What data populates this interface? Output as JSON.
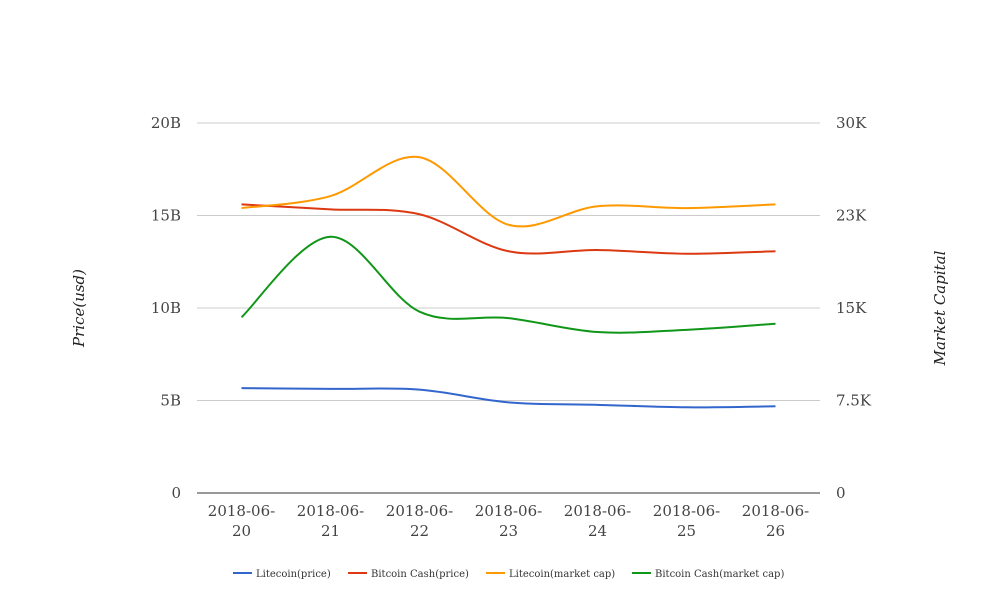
{
  "chart_data": {
    "type": "line",
    "x": [
      "2018-06-20",
      "2018-06-21",
      "2018-06-22",
      "2018-06-23",
      "2018-06-24",
      "2018-06-25",
      "2018-06-26"
    ],
    "x_tick_labels": [
      [
        "2018-06-",
        "20"
      ],
      [
        "2018-06-",
        "21"
      ],
      [
        "2018-06-",
        "22"
      ],
      [
        "2018-06-",
        "23"
      ],
      [
        "2018-06-",
        "24"
      ],
      [
        "2018-06-",
        "25"
      ],
      [
        "2018-06-",
        "26"
      ]
    ],
    "ylabel": "Price(usd)",
    "y2label": "Market Capital",
    "ylim": [
      0,
      20000000000
    ],
    "y2lim": [
      0,
      30000
    ],
    "y_ticks": [
      {
        "value": 0,
        "label": "0"
      },
      {
        "value": 5000000000,
        "label": "5B"
      },
      {
        "value": 10000000000,
        "label": "10B"
      },
      {
        "value": 15000000000,
        "label": "15B"
      },
      {
        "value": 20000000000,
        "label": "20B"
      }
    ],
    "y2_ticks": [
      {
        "value": 0,
        "label": "0"
      },
      {
        "value": 7500,
        "label": "7.5K"
      },
      {
        "value": 15000,
        "label": "15K"
      },
      {
        "value": 22500,
        "label": "23K"
      },
      {
        "value": 30000,
        "label": "30K"
      }
    ],
    "grid": true,
    "legend_position": "bottom",
    "series": [
      {
        "name": "Litecoin(price)",
        "axis": "right",
        "color": "#3366cc",
        "values": [
          8500,
          8440,
          8380,
          7350,
          7150,
          6950,
          7030
        ]
      },
      {
        "name": "Bitcoin Cash(price)",
        "axis": "right",
        "color": "#dc3912",
        "values": [
          23400,
          23000,
          22600,
          19600,
          19700,
          19400,
          19600
        ]
      },
      {
        "name": "Litecoin(market cap)",
        "axis": "left",
        "color": "#ff9900",
        "values": [
          15400000000,
          16050000000,
          18150000000,
          14500000000,
          15500000000,
          15400000000,
          15600000000
        ]
      },
      {
        "name": "Bitcoin Cash(market cap)",
        "axis": "left",
        "color": "#109618",
        "values": [
          9500000000,
          13850000000,
          9800000000,
          9450000000,
          8700000000,
          8820000000,
          9150000000
        ]
      }
    ]
  }
}
